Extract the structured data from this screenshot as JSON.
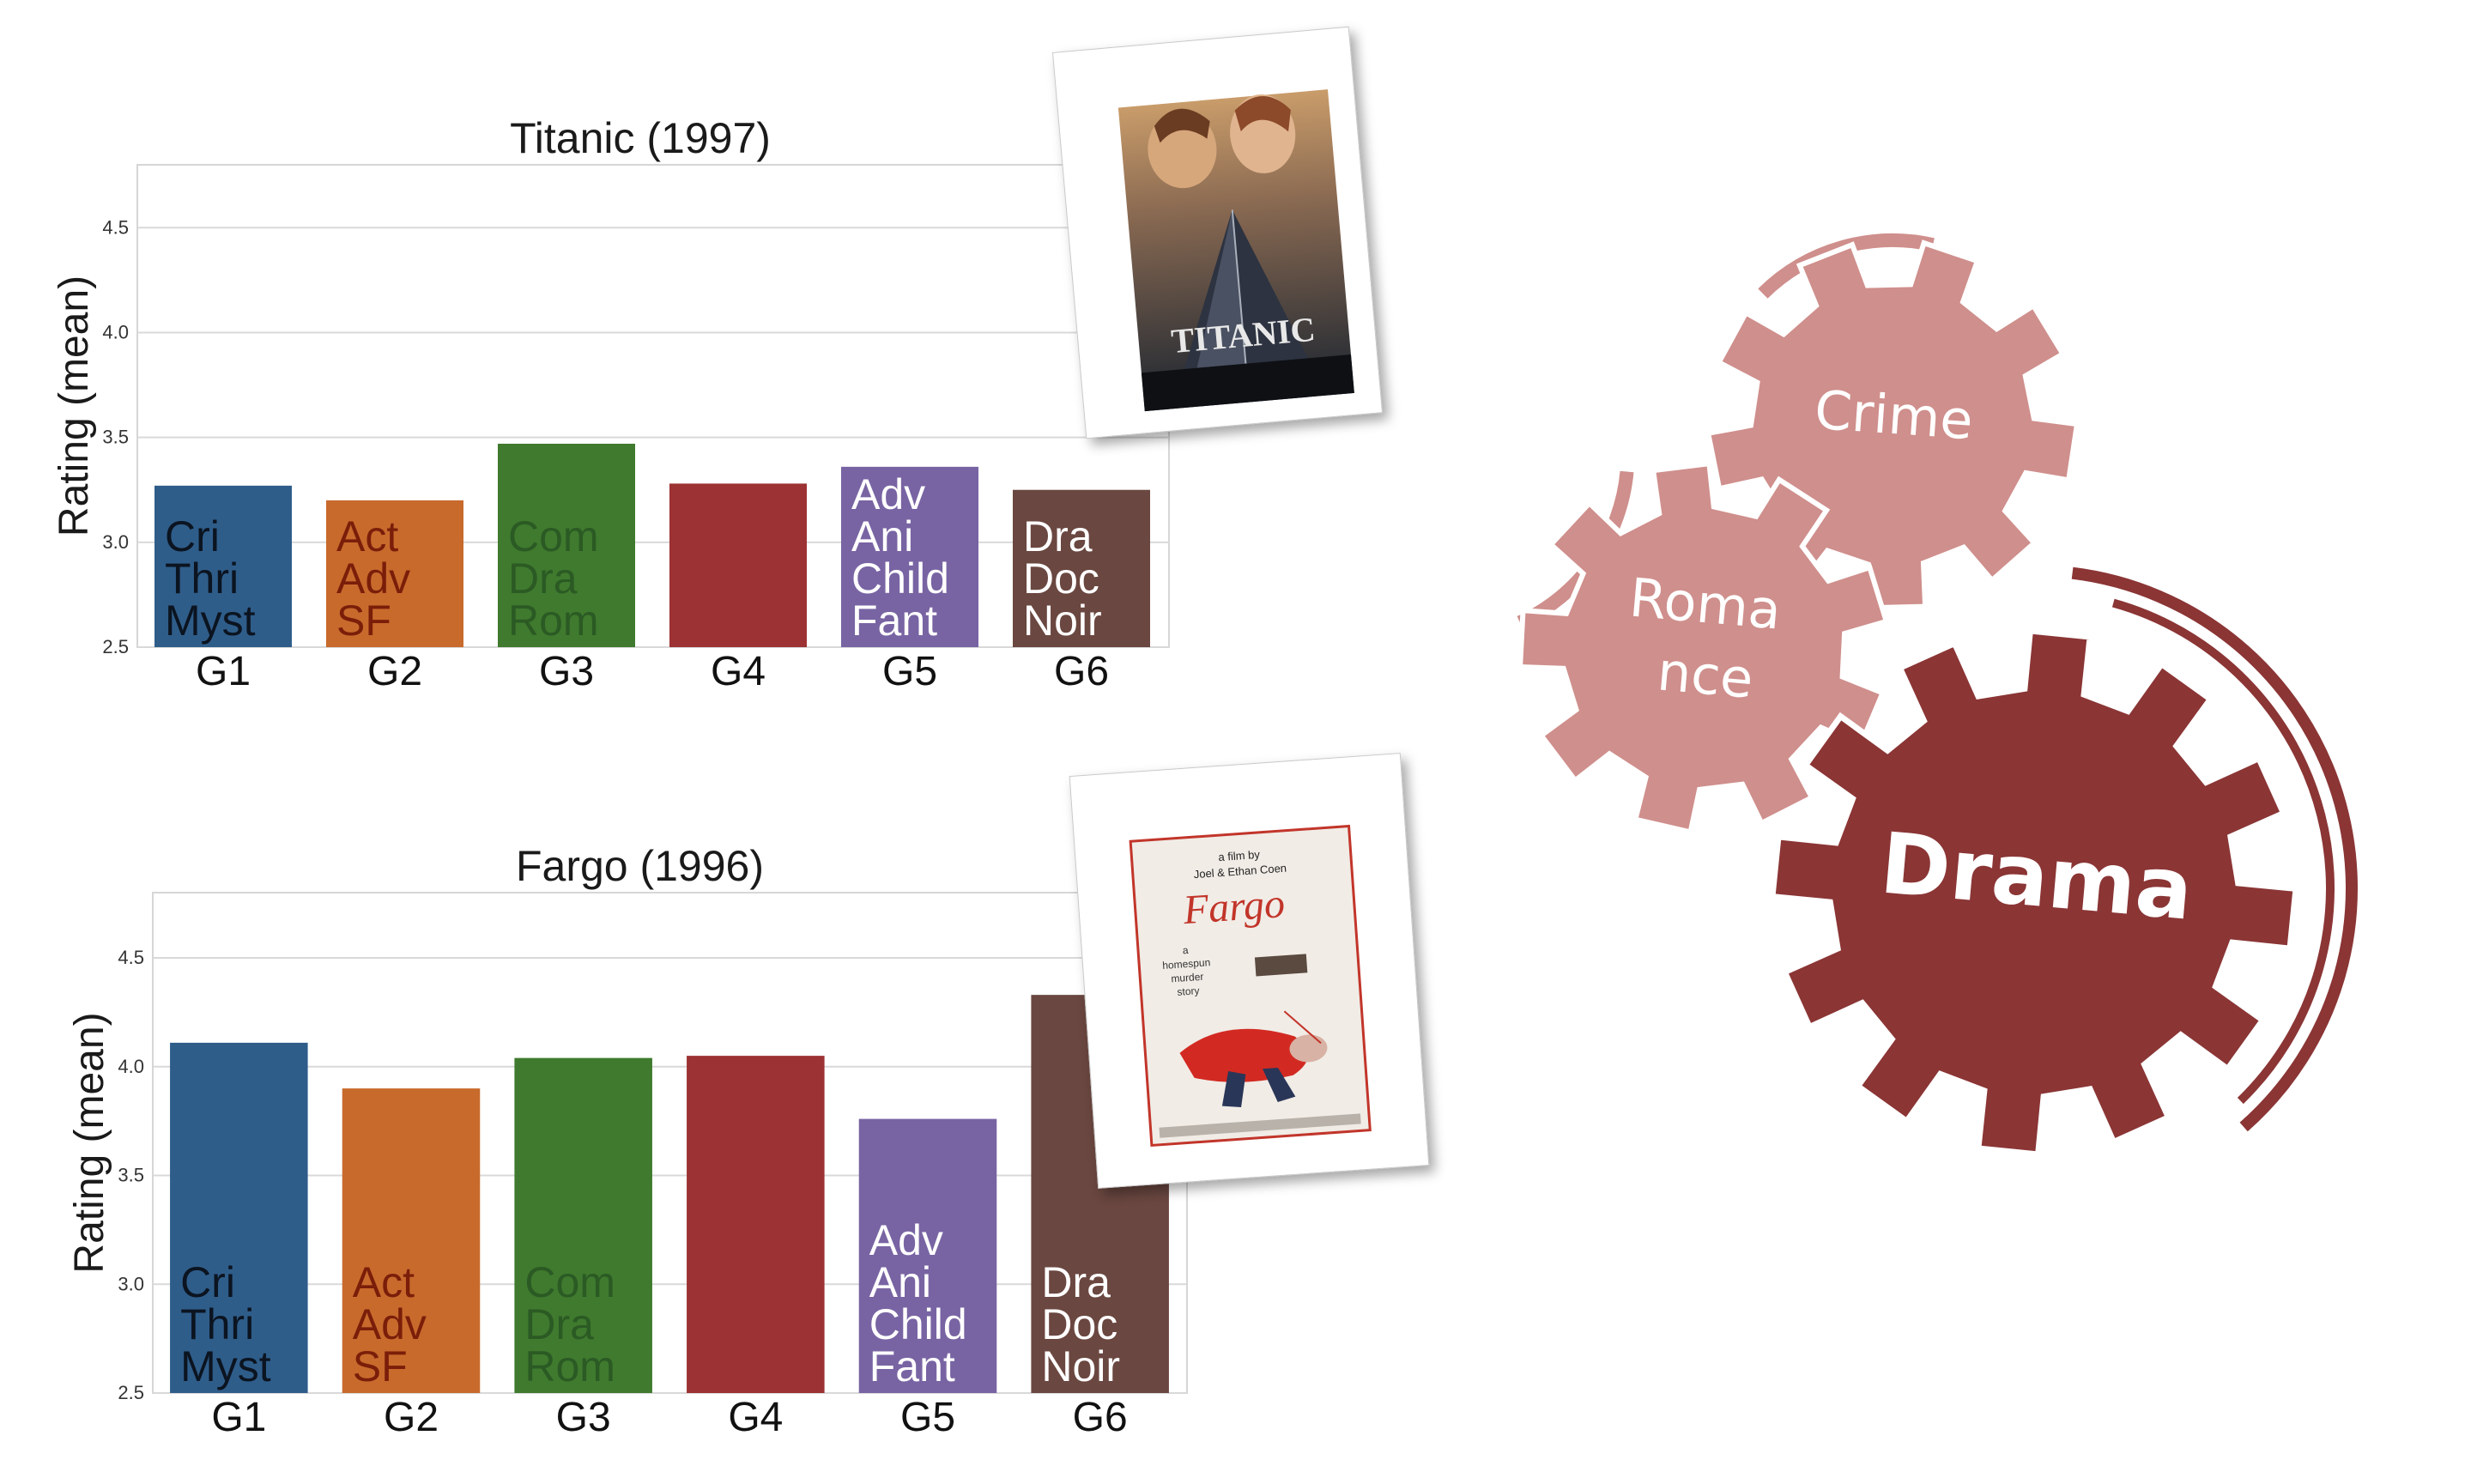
{
  "chart_data": [
    {
      "type": "bar",
      "title": "Titanic (1997)",
      "ylabel": "Rating (mean)",
      "xlabel": "",
      "categories": [
        "G1",
        "G2",
        "G3",
        "G4",
        "G5",
        "G6"
      ],
      "values": [
        3.27,
        3.2,
        3.47,
        3.28,
        3.36,
        3.25
      ],
      "ylim": [
        2.5,
        4.8
      ],
      "yticks": [
        "2.5",
        "3.0",
        "3.5",
        "4.0",
        "4.5"
      ],
      "grid": true,
      "bar_colors": [
        "#2f5d8a",
        "#c86a2c",
        "#3f7a2e",
        "#9c3233",
        "#7864a3",
        "#6a4740"
      ],
      "bar_labels": [
        [
          "Cri",
          "Thri",
          "Myst"
        ],
        [
          "Act",
          "Adv",
          "SF"
        ],
        [
          "Com",
          "Dra",
          "Rom"
        ],
        [],
        [
          "Adv",
          "Ani",
          "Child",
          "Fant"
        ],
        [
          "Dra",
          "Doc",
          "Noir"
        ]
      ],
      "bar_label_colors": [
        "#0b1420",
        "#7a1e0a",
        "#2b5a24",
        "#ffffff",
        "#ffffff",
        "#ffffff"
      ]
    },
    {
      "type": "bar",
      "title": "Fargo (1996)",
      "ylabel": "Rating (mean)",
      "xlabel": "",
      "categories": [
        "G1",
        "G2",
        "G3",
        "G4",
        "G5",
        "G6"
      ],
      "values": [
        4.11,
        3.9,
        4.04,
        4.05,
        3.76,
        4.33
      ],
      "ylim": [
        2.5,
        4.8
      ],
      "yticks": [
        "2.5",
        "3.0",
        "3.5",
        "4.0",
        "4.5"
      ],
      "grid": true,
      "bar_colors": [
        "#2f5d8a",
        "#c86a2c",
        "#3f7a2e",
        "#9c3233",
        "#7864a3",
        "#6a4740"
      ],
      "bar_labels": [
        [
          "Cri",
          "Thri",
          "Myst"
        ],
        [
          "Act",
          "Adv",
          "SF"
        ],
        [
          "Com",
          "Dra",
          "Rom"
        ],
        [],
        [
          "Adv",
          "Ani",
          "Child",
          "Fant"
        ],
        [
          "Dra",
          "Doc",
          "Noir"
        ]
      ],
      "bar_label_colors": [
        "#0b1420",
        "#7a1e0a",
        "#2b5a24",
        "#ffffff",
        "#ffffff",
        "#ffffff"
      ]
    }
  ],
  "posters": [
    {
      "name": "titanic-poster",
      "text": "TITANIC"
    },
    {
      "name": "fargo-poster",
      "lines": [
        "a film by",
        "Joel & Ethan Coen",
        "Fargo",
        "a",
        "homespun",
        "murder",
        "story"
      ]
    }
  ],
  "gears": [
    {
      "label": "Crime",
      "color": "#cf8f8c"
    },
    {
      "label_lines": [
        "Roma",
        "nce"
      ],
      "color": "#cf8f8c"
    },
    {
      "label": "Drama",
      "color": "#8b3535"
    }
  ]
}
